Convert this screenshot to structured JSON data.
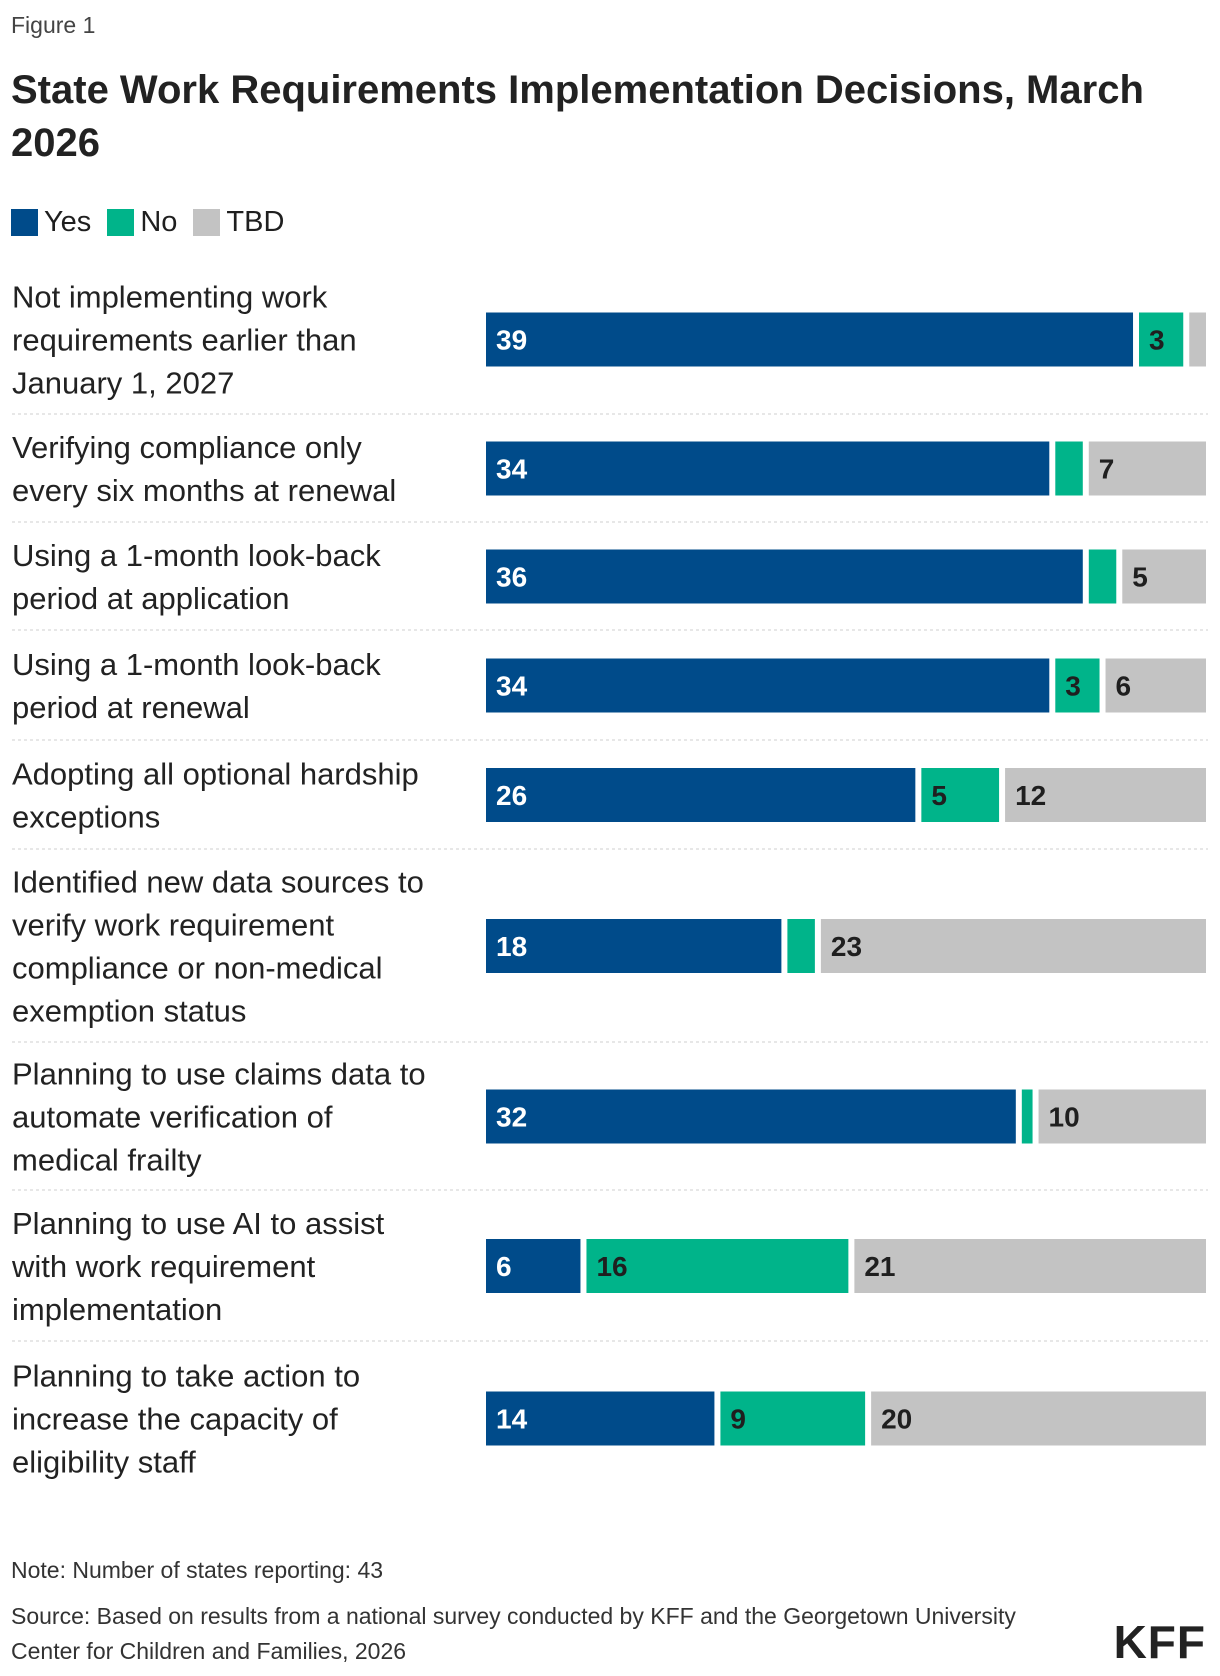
{
  "figure_label": "Figure 1",
  "note": "Note: Number of states reporting: 43",
  "source": "Source: Based on results from a national survey conducted by KFF and the Georgetown University Center for Children and Families, 2026",
  "logo_text": "KFF",
  "colors": {
    "yes": "#004b8a",
    "no": "#00b48a",
    "tbd": "#c3c3c3",
    "yes_label": "#ffffff",
    "other_label": "#1f1f1f"
  },
  "chart_data": {
    "type": "bar",
    "orientation": "horizontal",
    "stacked": true,
    "title": "State Work Requirements Implementation Decisions, March 2026",
    "xlabel": "",
    "ylabel": "",
    "xlim": [
      0,
      43
    ],
    "grid": false,
    "legend_position": "top-left",
    "categories": [
      "Not implementing work requirements earlier than January 1, 2027",
      "Verifying compliance only every six months at renewal",
      "Using a 1-month look-back period at application",
      "Using a 1-month look-back period at renewal",
      "Adopting all optional hardship exceptions",
      "Identified new data sources to verify work requirement compliance or non-medical exemption status",
      "Planning to use claims data to automate verification of medical frailty",
      "Planning to use AI to assist with work requirement implementation",
      "Planning to take action to increase the capacity of eligibility staff"
    ],
    "series": [
      {
        "name": "Yes",
        "values": [
          39,
          34,
          36,
          34,
          26,
          18,
          32,
          6,
          14
        ]
      },
      {
        "name": "No",
        "values": [
          3,
          2,
          2,
          3,
          5,
          2,
          1,
          16,
          9
        ]
      },
      {
        "name": "TBD",
        "values": [
          1,
          7,
          5,
          6,
          12,
          23,
          10,
          21,
          20
        ]
      }
    ],
    "data_labels": [
      [
        "39",
        "3",
        ""
      ],
      [
        "34",
        "",
        "7"
      ],
      [
        "36",
        "",
        "5"
      ],
      [
        "34",
        "3",
        "6"
      ],
      [
        "26",
        "5",
        "12"
      ],
      [
        "18",
        "",
        "23"
      ],
      [
        "32",
        "",
        "10"
      ],
      [
        "6",
        "16",
        "21"
      ],
      [
        "14",
        "9",
        "20"
      ]
    ],
    "label_lines": [
      [
        "Not implementing work",
        "requirements earlier than",
        "January 1, 2027"
      ],
      [
        "Verifying compliance only",
        "every six months at renewal"
      ],
      [
        "Using a 1-month look-back",
        "period at application"
      ],
      [
        "Using a 1-month look-back",
        "period at renewal"
      ],
      [
        "Adopting all optional hardship",
        "exceptions"
      ],
      [
        "Identified new data sources to",
        "verify work requirement",
        "compliance or non-medical",
        "exemption status"
      ],
      [
        "Planning to use claims data to",
        "automate verification of",
        "medical frailty"
      ],
      [
        "Planning to use AI to assist",
        "with work requirement",
        "implementation"
      ],
      [
        "Planning to take action to",
        "increase the capacity of",
        "eligibility staff"
      ]
    ]
  }
}
